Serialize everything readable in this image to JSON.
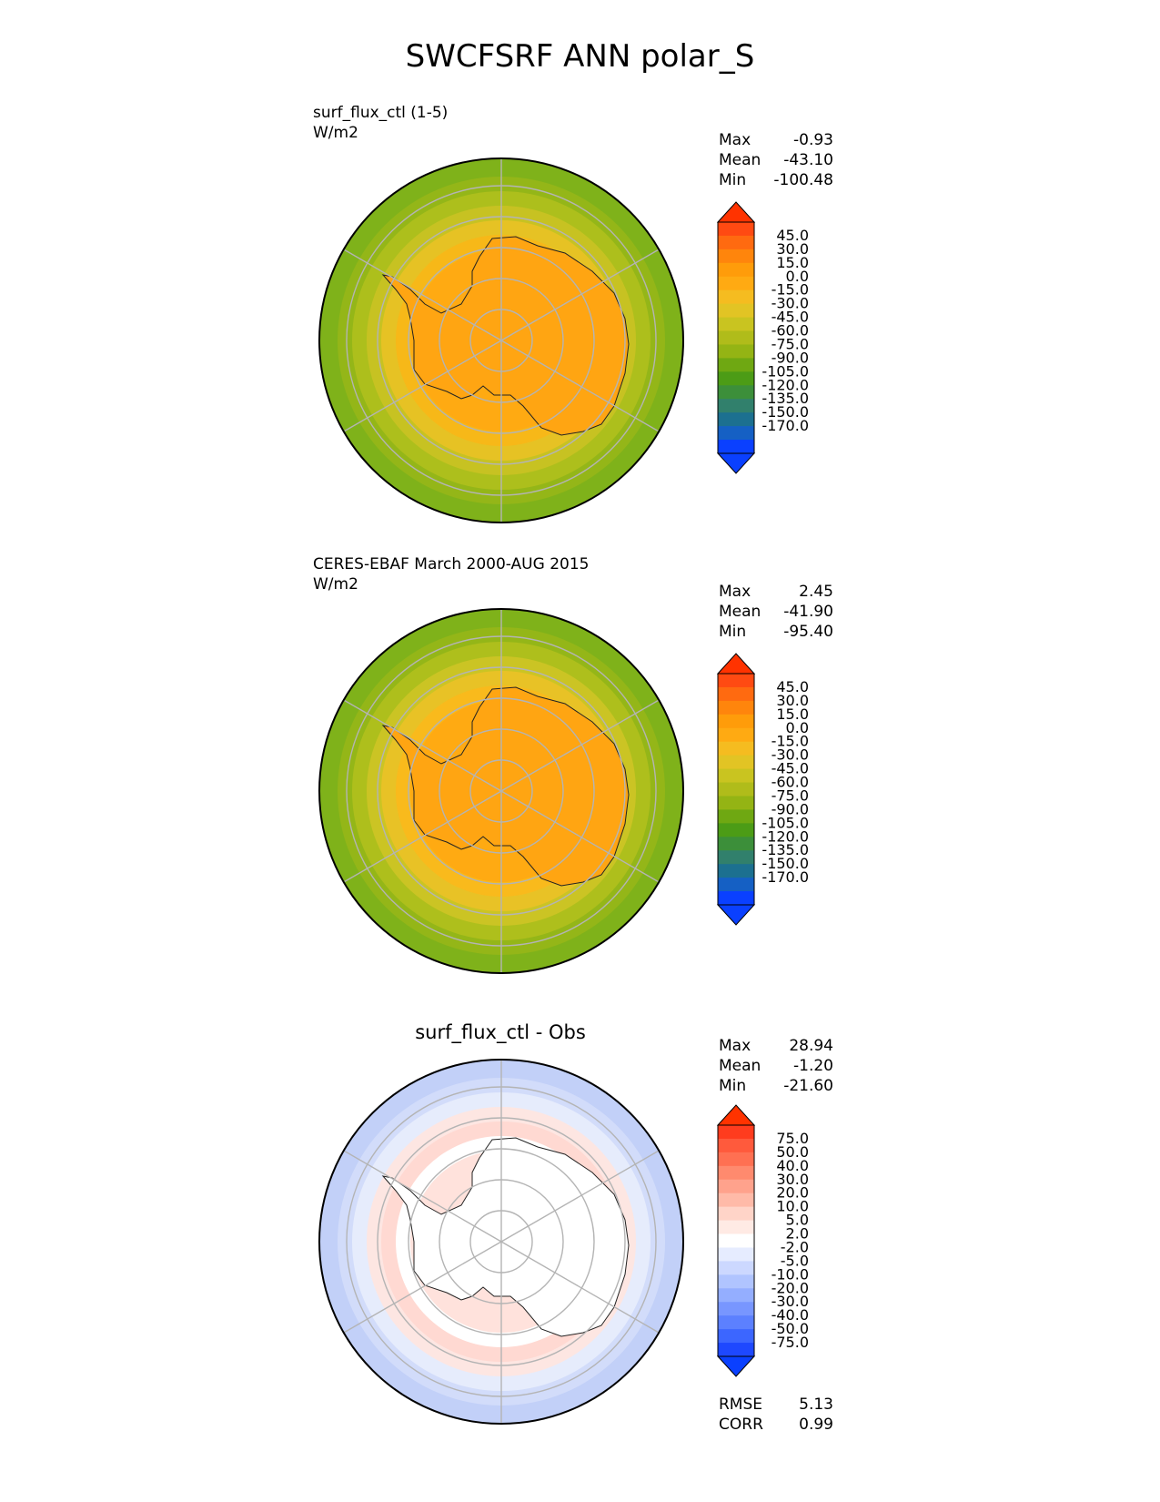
{
  "title": "SWCFSRF ANN polar_S",
  "panels": [
    {
      "title_line1": "surf_flux_ctl (1-5)",
      "title_line2": "W/m2",
      "stats": [
        {
          "label": "Max",
          "value": "-0.93"
        },
        {
          "label": "Mean",
          "value": "-43.10"
        },
        {
          "label": "Min",
          "value": "-100.48"
        }
      ],
      "colorbar": {
        "labels": [
          "45.0",
          "30.0",
          "15.0",
          "0.0",
          "-15.0",
          "-30.0",
          "-45.0",
          "-60.0",
          "-75.0",
          "-90.0",
          "-105.0",
          "-120.0",
          "-135.0",
          "-150.0",
          "-170.0"
        ],
        "colors": [
          "#ff4a12",
          "#ff6a10",
          "#ff850c",
          "#ff9c0a",
          "#ffaa12",
          "#f5bc20",
          "#e2c424",
          "#c9c420",
          "#b0bc1a",
          "#94b414",
          "#6fa812",
          "#4c9c16",
          "#3c8f3a",
          "#31806c",
          "#1c7090",
          "#1560c4",
          "#0a40ff"
        ],
        "top_cap": "#ff3300",
        "bottom_cap": "#0a40ff"
      },
      "map": {
        "rings": [
          "#7fb21a",
          "#94b618",
          "#adbf1c",
          "#c7c222",
          "#e6c224",
          "#f7b818",
          "#ffaa12"
        ],
        "land": "#ffa512"
      }
    },
    {
      "title_line1": "CERES-EBAF March 2000-AUG 2015",
      "title_line2": "W/m2",
      "stats": [
        {
          "label": "Max",
          "value": "2.45"
        },
        {
          "label": "Mean",
          "value": "-41.90"
        },
        {
          "label": "Min",
          "value": "-95.40"
        }
      ],
      "colorbar": {
        "labels": [
          "45.0",
          "30.0",
          "15.0",
          "0.0",
          "-15.0",
          "-30.0",
          "-45.0",
          "-60.0",
          "-75.0",
          "-90.0",
          "-105.0",
          "-120.0",
          "-135.0",
          "-150.0",
          "-170.0"
        ],
        "colors": [
          "#ff4a12",
          "#ff6a10",
          "#ff850c",
          "#ff9c0a",
          "#ffaa12",
          "#f5bc20",
          "#e2c424",
          "#c9c420",
          "#b0bc1a",
          "#94b414",
          "#6fa812",
          "#4c9c16",
          "#3c8f3a",
          "#31806c",
          "#1c7090",
          "#1560c4",
          "#0a40ff"
        ],
        "top_cap": "#ff3300",
        "bottom_cap": "#0a40ff"
      },
      "map": {
        "rings": [
          "#7fb21a",
          "#94b618",
          "#aebf1c",
          "#cbc424",
          "#e8c226",
          "#f9ba1c",
          "#ffaa12"
        ],
        "land": "#ffa512"
      }
    },
    {
      "title_center": "surf_flux_ctl - Obs",
      "stats": [
        {
          "label": "Max",
          "value": "28.94"
        },
        {
          "label": "Mean",
          "value": "-1.20"
        },
        {
          "label": "Min",
          "value": "-21.60"
        }
      ],
      "colorbar": {
        "labels": [
          "75.0",
          "50.0",
          "40.0",
          "30.0",
          "20.0",
          "10.0",
          "5.0",
          "2.0",
          "-2.0",
          "-5.0",
          "-10.0",
          "-20.0",
          "-30.0",
          "-40.0",
          "-50.0",
          "-75.0"
        ],
        "colors": [
          "#ff3c1e",
          "#ff5a3c",
          "#ff7052",
          "#ff8a6e",
          "#ffa28c",
          "#ffbaa8",
          "#ffd4c8",
          "#ffeae4",
          "#ffffff",
          "#e6ecff",
          "#ccd8ff",
          "#b0c4ff",
          "#94aeff",
          "#7896ff",
          "#5c80ff",
          "#3c66ff",
          "#1e48ff"
        ],
        "top_cap": "#ff3300",
        "bottom_cap": "#0a40ff"
      },
      "map": {
        "rings": [
          "#c2d0f8",
          "#d2dcfa",
          "#e6ecfc",
          "#fde6e2",
          "#ffd9d2",
          "#ffffff",
          "#ffe2dc"
        ],
        "land": "#ffffff"
      },
      "metrics": [
        {
          "label": "RMSE",
          "value": "5.13"
        },
        {
          "label": "CORR",
          "value": "0.99"
        }
      ]
    }
  ],
  "chart_data": {
    "type": "polar_map",
    "title": "SWCFSRF ANN polar_S",
    "panels": [
      {
        "name": "surf_flux_ctl (1-5)",
        "units": "W/m2",
        "max": -0.93,
        "mean": -43.1,
        "min": -100.48,
        "levels": [
          -170,
          -150,
          -135,
          -120,
          -105,
          -90,
          -75,
          -60,
          -45,
          -30,
          -15,
          0,
          15,
          30,
          45
        ]
      },
      {
        "name": "CERES-EBAF March 2000-AUG 2015",
        "units": "W/m2",
        "max": 2.45,
        "mean": -41.9,
        "min": -95.4,
        "levels": [
          -170,
          -150,
          -135,
          -120,
          -105,
          -90,
          -75,
          -60,
          -45,
          -30,
          -15,
          0,
          15,
          30,
          45
        ]
      },
      {
        "name": "surf_flux_ctl - Obs",
        "max": 28.94,
        "mean": -1.2,
        "min": -21.6,
        "rmse": 5.13,
        "corr": 0.99,
        "levels": [
          -75,
          -50,
          -40,
          -30,
          -20,
          -10,
          -5,
          -2,
          2,
          5,
          10,
          20,
          30,
          40,
          50,
          75
        ]
      }
    ]
  }
}
